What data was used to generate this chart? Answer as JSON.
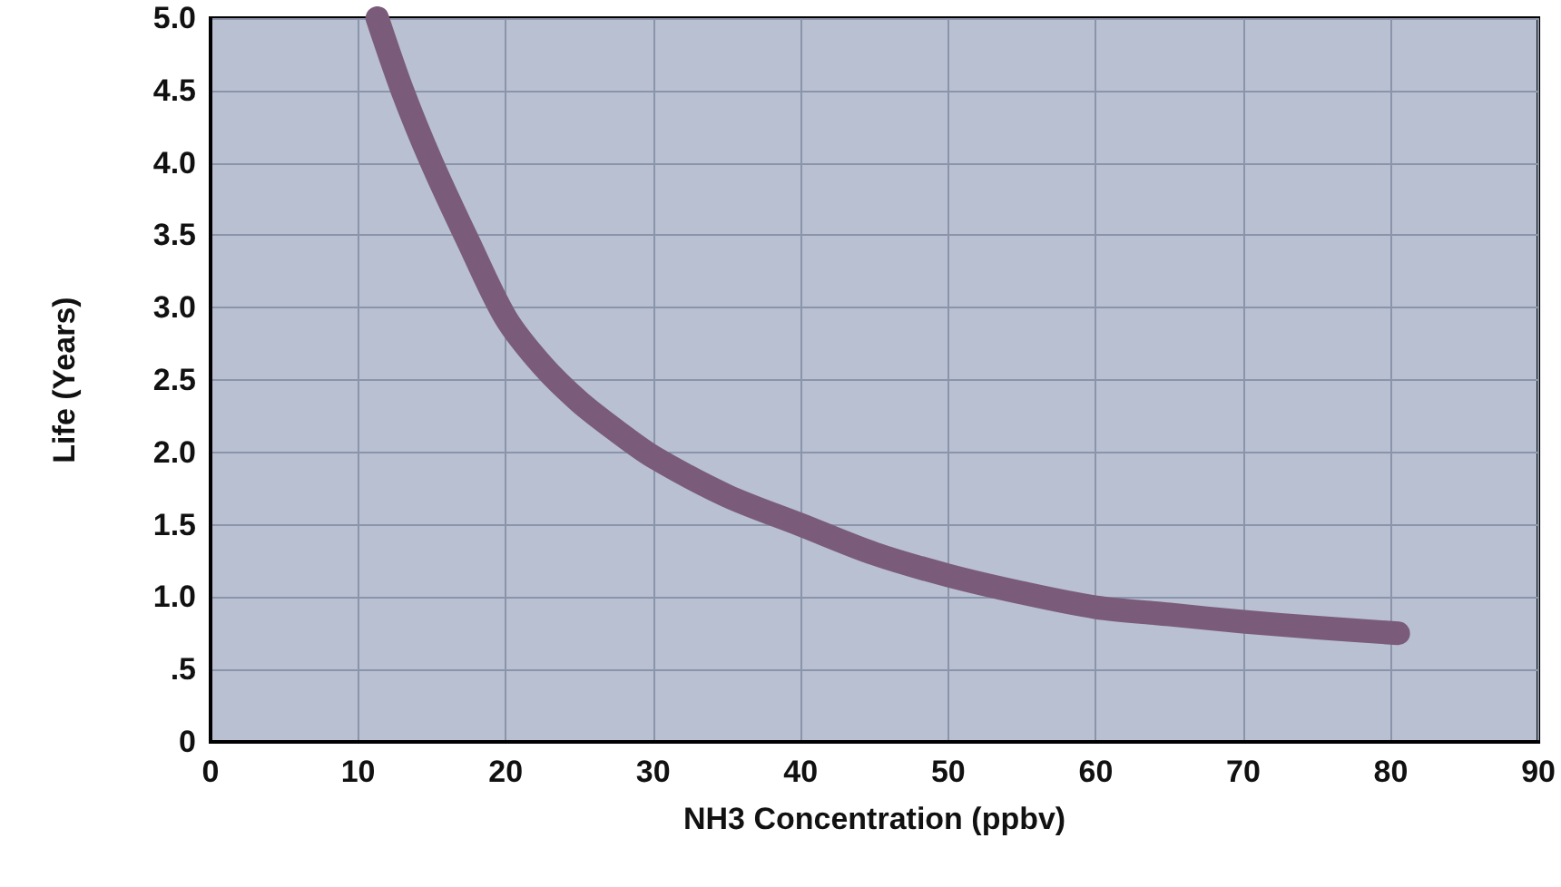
{
  "chart_data": {
    "type": "line",
    "xlabel": "NH3 Concentration (ppbv)",
    "ylabel": "Life (Years)",
    "x": [
      11.3,
      13,
      15,
      17.5,
      20,
      22.5,
      25,
      27.5,
      30,
      35,
      40,
      45,
      50,
      55,
      60,
      65,
      70,
      75,
      80.5
    ],
    "series": [
      {
        "color": "#7b5b7a",
        "values": [
          5.0,
          4.5,
          4.0,
          3.45,
          2.93,
          2.6,
          2.35,
          2.15,
          1.97,
          1.7,
          1.5,
          1.3,
          1.15,
          1.03,
          0.93,
          0.88,
          0.83,
          0.79,
          0.75
        ]
      }
    ],
    "xlim": [
      0,
      90
    ],
    "xticks": [
      0,
      10,
      20,
      30,
      40,
      50,
      60,
      70,
      80,
      90
    ],
    "ylim": [
      0,
      5
    ],
    "yticks": [
      0,
      {
        "value": 0.5,
        "label": ".5"
      },
      {
        "value": 1,
        "label": "1.0"
      },
      1.5,
      {
        "value": 2,
        "label": "2.0"
      },
      2.5,
      {
        "value": 3,
        "label": "3.0"
      },
      3.5,
      {
        "value": 4,
        "label": "4.0"
      },
      4.5,
      {
        "value": 5,
        "label": "5.0"
      }
    ],
    "grid": true,
    "line_style": "solid"
  }
}
